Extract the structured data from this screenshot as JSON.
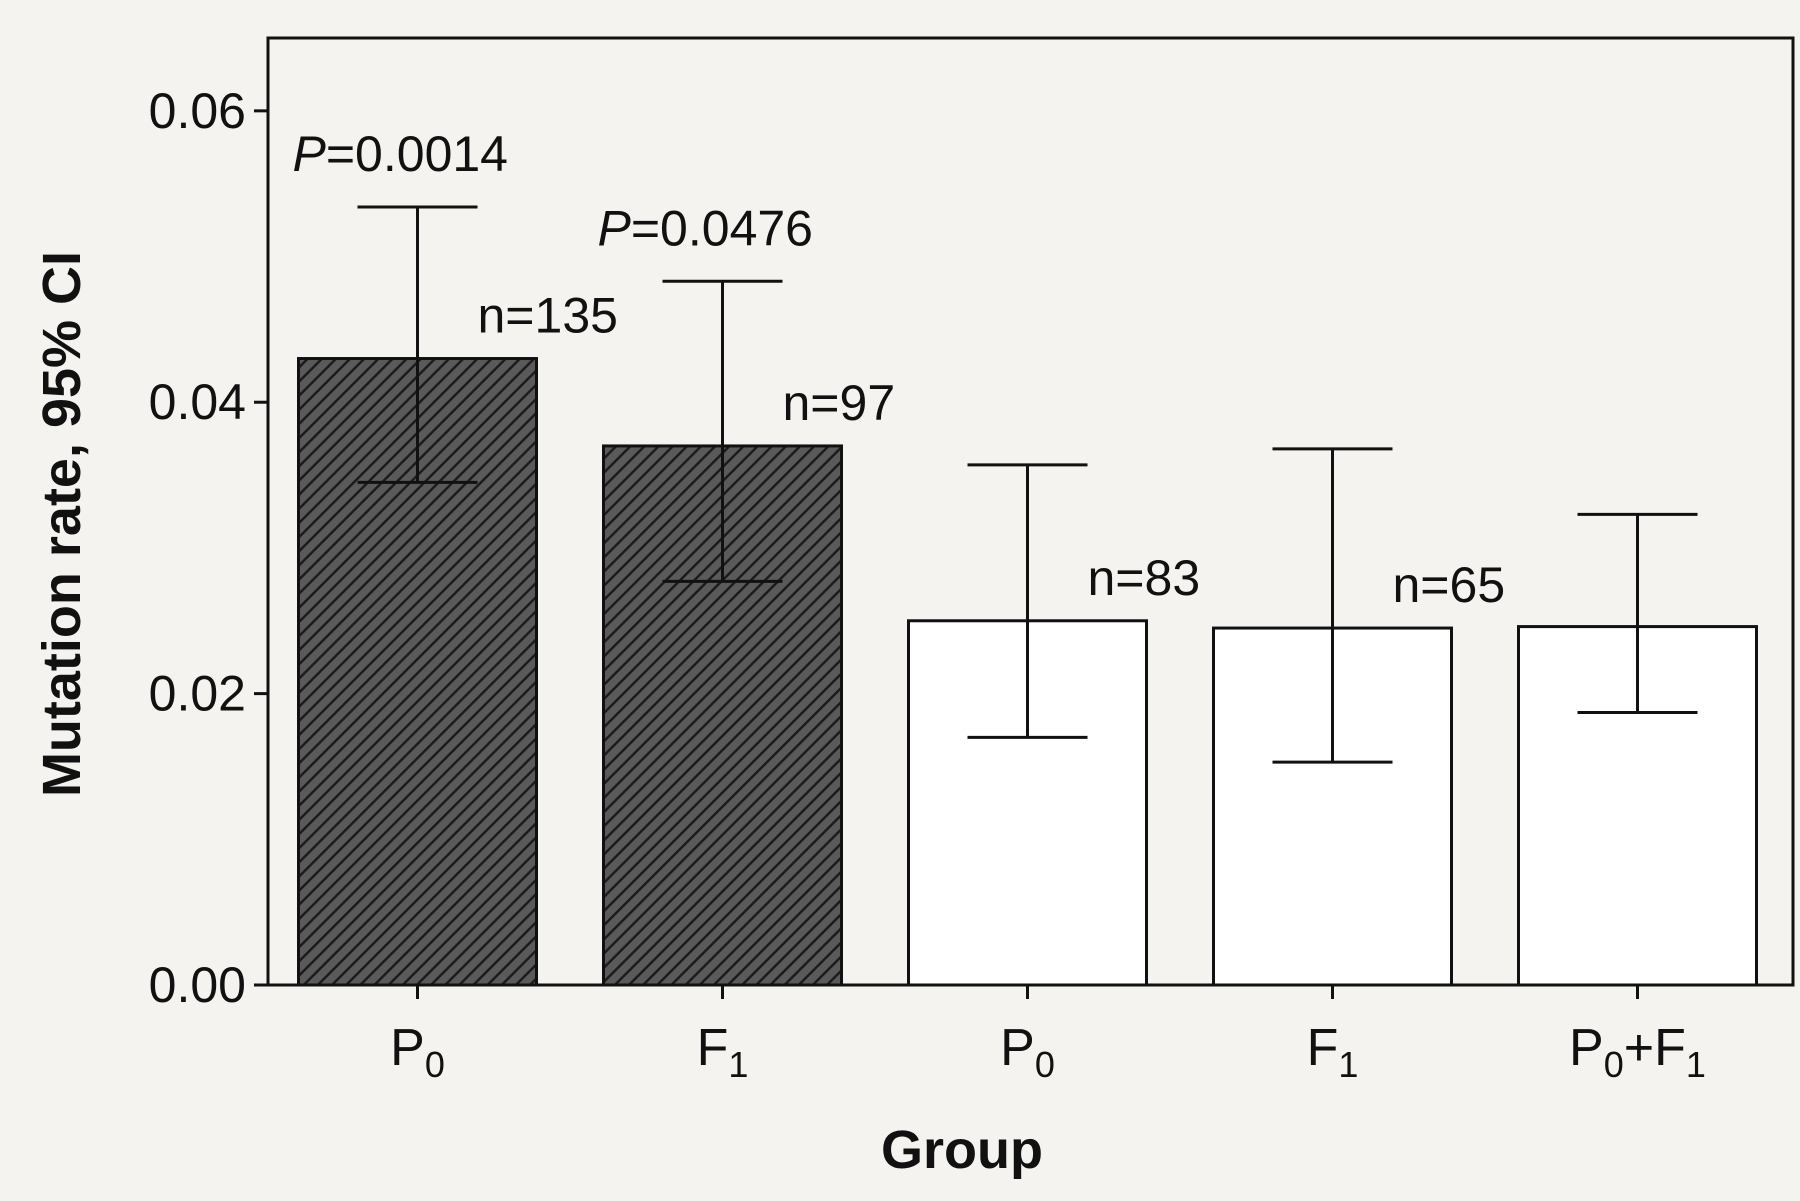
{
  "chart_data": {
    "type": "bar",
    "xlabel": "Group",
    "ylabel": "Mutation rate, 95% CI",
    "ylim": [
      0,
      0.065
    ],
    "yticks": [
      "0.00",
      "0.02",
      "0.04",
      "0.06"
    ],
    "ytick_values": [
      0,
      0.02,
      0.04,
      0.06
    ],
    "grid": false,
    "categories": [
      {
        "main": "P",
        "sub": "0"
      },
      {
        "main": "F",
        "sub": "1"
      },
      {
        "main": "P",
        "sub": "0"
      },
      {
        "main": "F",
        "sub": "1"
      },
      {
        "main": "P",
        "sub": "0",
        "plus": "+F",
        "sub2": "1"
      }
    ],
    "values": [
      0.043,
      0.037,
      0.025,
      0.0245,
      0.0246
    ],
    "ci_low": [
      0.0345,
      0.0277,
      0.017,
      0.0153,
      0.0187
    ],
    "ci_high": [
      0.0534,
      0.0483,
      0.0357,
      0.0368,
      0.0323
    ],
    "bar_style": [
      "hatched",
      "hatched",
      "open",
      "open",
      "open"
    ],
    "n_labels": [
      "n=135",
      "n=97",
      "n=83",
      "n=65",
      ""
    ],
    "p_labels": [
      {
        "p": "P",
        "rest": "=0.0014"
      },
      {
        "p": "P",
        "rest": "=0.0476"
      },
      null,
      null,
      null
    ],
    "colors": {
      "hatched_fill": "#5a5a5a",
      "open_fill": "#ffffff",
      "stroke": "#111111"
    }
  }
}
